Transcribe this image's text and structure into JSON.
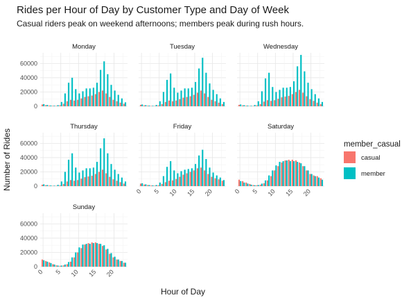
{
  "chart_data": {
    "type": "bar",
    "title": "Rides per Hour of Day by Customer Type and Day of Week",
    "subtitle": "Casual riders peak on weekend afternoons; members peak during rush hours.",
    "xlabel": "Hour of Day",
    "ylabel": "Number of Rides",
    "x_ticks": [
      0,
      5,
      10,
      15,
      20
    ],
    "y_ticks": [
      0,
      20000,
      40000,
      60000
    ],
    "y_tick_labels": [
      "0",
      "20000",
      "40000",
      "60000"
    ],
    "ylim": [
      0,
      75000
    ],
    "grid": true,
    "legend": {
      "title": "member_casual",
      "position": "right"
    },
    "hours": [
      0,
      1,
      2,
      3,
      4,
      5,
      6,
      7,
      8,
      9,
      10,
      11,
      12,
      13,
      14,
      15,
      16,
      17,
      18,
      19,
      20,
      21,
      22,
      23
    ],
    "series_names": [
      "casual",
      "member"
    ],
    "colors": {
      "casual": "#F8766D",
      "member": "#00BFC4"
    },
    "facets": [
      {
        "day": "Monday",
        "casual": [
          2500,
          1500,
          1000,
          700,
          600,
          1500,
          3500,
          7000,
          9000,
          8000,
          9000,
          11000,
          13000,
          14000,
          15000,
          17000,
          20000,
          22000,
          18000,
          13000,
          9000,
          7000,
          5000,
          3500
        ],
        "member": [
          3000,
          1800,
          1000,
          800,
          1500,
          6000,
          18000,
          33000,
          40000,
          24000,
          18000,
          21000,
          25000,
          25000,
          26000,
          33000,
          51000,
          63000,
          45000,
          30000,
          22000,
          16000,
          11000,
          5500
        ]
      },
      {
        "day": "Tuesday",
        "casual": [
          2000,
          1200,
          800,
          500,
          500,
          1200,
          3000,
          6000,
          8000,
          7000,
          8000,
          10000,
          12000,
          13000,
          14000,
          16000,
          19000,
          22000,
          18000,
          13000,
          9000,
          7000,
          5000,
          3000
        ],
        "member": [
          2500,
          1500,
          900,
          700,
          1800,
          7000,
          20000,
          37000,
          46000,
          26000,
          19000,
          22000,
          25000,
          25000,
          26000,
          34000,
          53000,
          68000,
          47000,
          32000,
          23000,
          17000,
          11000,
          6000
        ]
      },
      {
        "day": "Wednesday",
        "casual": [
          2000,
          1200,
          800,
          500,
          500,
          1200,
          3000,
          6500,
          8500,
          7500,
          8500,
          10500,
          12500,
          13500,
          14500,
          17000,
          20000,
          23000,
          19000,
          14000,
          10000,
          7500,
          5000,
          3000
        ],
        "member": [
          2500,
          1500,
          900,
          700,
          1800,
          7000,
          21000,
          39000,
          47000,
          27000,
          20000,
          23000,
          26000,
          26000,
          27000,
          35000,
          56000,
          72000,
          49000,
          33000,
          24000,
          17000,
          11000,
          6000
        ]
      },
      {
        "day": "Thursday",
        "casual": [
          2000,
          1200,
          800,
          500,
          500,
          1200,
          3000,
          6500,
          8500,
          7500,
          8500,
          10500,
          12500,
          13500,
          14500,
          17000,
          20000,
          23000,
          18000,
          13000,
          9500,
          7500,
          5500,
          3500
        ],
        "member": [
          2500,
          1500,
          900,
          700,
          1800,
          6500,
          20000,
          37000,
          46000,
          26000,
          19000,
          22000,
          25000,
          25000,
          26000,
          34000,
          53000,
          67000,
          46000,
          31000,
          23000,
          17000,
          12000,
          6500
        ]
      },
      {
        "day": "Friday",
        "casual": [
          3500,
          2200,
          1500,
          900,
          700,
          1200,
          3000,
          5500,
          7500,
          8000,
          10000,
          13000,
          16000,
          18000,
          20000,
          22000,
          25000,
          26000,
          22000,
          17000,
          13000,
          11000,
          9500,
          7500
        ],
        "member": [
          4000,
          2500,
          1500,
          1000,
          1500,
          5000,
          14000,
          27000,
          35000,
          22000,
          18000,
          21000,
          23000,
          24000,
          25000,
          31000,
          43000,
          51000,
          38000,
          26000,
          19000,
          15000,
          12000,
          8500
        ]
      },
      {
        "day": "Saturday",
        "casual": [
          9000,
          7000,
          5000,
          3000,
          1500,
          1200,
          2000,
          4000,
          8000,
          14000,
          22000,
          28000,
          33000,
          36000,
          37000,
          37000,
          36000,
          33000,
          28000,
          22000,
          17000,
          15000,
          14000,
          11000
        ],
        "member": [
          7000,
          5000,
          3500,
          2000,
          1200,
          1500,
          3500,
          8000,
          15000,
          22000,
          29000,
          34000,
          35000,
          36000,
          35000,
          35000,
          34000,
          32000,
          28000,
          22000,
          17000,
          14000,
          12000,
          9000
        ]
      },
      {
        "day": "Sunday",
        "casual": [
          10000,
          8000,
          6000,
          3500,
          1800,
          1200,
          1800,
          3500,
          7000,
          13000,
          20000,
          26000,
          31000,
          33000,
          34000,
          34000,
          32000,
          29000,
          24000,
          18000,
          13000,
          10000,
          8000,
          5500
        ],
        "member": [
          9000,
          7000,
          5000,
          3000,
          1500,
          1500,
          3000,
          6500,
          13000,
          20000,
          27000,
          31000,
          32000,
          32000,
          33000,
          33000,
          32000,
          30000,
          25000,
          19000,
          14000,
          10000,
          8000,
          5500
        ]
      }
    ]
  }
}
